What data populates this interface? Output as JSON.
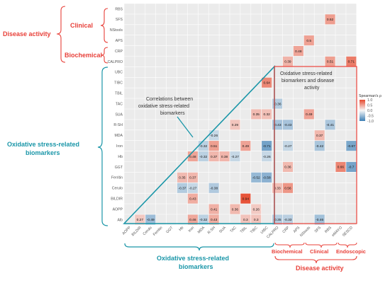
{
  "chart_data": {
    "type": "heatmap",
    "title": "",
    "legend": {
      "title": "Spearman's ρ",
      "ticks": [
        "1.0",
        "0.5",
        "0.0",
        "-0.5",
        "-1.0"
      ],
      "range": [
        -1,
        1
      ],
      "colors": {
        "neg": "#3d7fb5",
        "mid": "#f7f7f7",
        "pos": "#e64a2e"
      }
    },
    "rows": [
      "RBS",
      "SFS",
      "NStools",
      "APS",
      "CRP",
      "CALPRO",
      "UBC",
      "TIBC",
      "TBIL",
      "TAC",
      "SUA",
      "R-SH",
      "MDA",
      "Iron",
      "Hb",
      "GGT",
      "Ferritin",
      "Cerulo",
      "BILDIR",
      "AOPP",
      "Alb"
    ],
    "columns": [
      "AOPP",
      "BILDIR",
      "Cerulo",
      "Ferritin",
      "GGT",
      "Hb",
      "Iron",
      "MDA",
      "R-SH",
      "SUA",
      "TAC",
      "TBIL",
      "TIBC",
      "UIBC",
      "CALPRO",
      "CRP",
      "APS",
      "NStools",
      "SFS",
      "RBS",
      "eMAYO",
      "SESCD"
    ],
    "cells": [
      {
        "r": 1,
        "c": 19,
        "v": 0.52
      },
      {
        "r": 3,
        "c": 17,
        "v": 0.5
      },
      {
        "r": 4,
        "c": 16,
        "v": 0.48
      },
      {
        "r": 5,
        "c": 15,
        "v": 0.39
      },
      {
        "r": 5,
        "c": 19,
        "v": 0.51
      },
      {
        "r": 5,
        "c": 21,
        "v": 0.71
      },
      {
        "r": 7,
        "c": 13,
        "v": 0.64
      },
      {
        "r": 9,
        "c": 14,
        "v": -0.36
      },
      {
        "r": 10,
        "c": 12,
        "v": 0.35
      },
      {
        "r": 10,
        "c": 13,
        "v": 0.32
      },
      {
        "r": 10,
        "c": 17,
        "v": 0.49
      },
      {
        "r": 11,
        "c": 10,
        "v": 0.29
      },
      {
        "r": 11,
        "c": 14,
        "v": -0.43
      },
      {
        "r": 11,
        "c": 15,
        "v": -0.43
      },
      {
        "r": 11,
        "c": 19,
        "v": -0.41
      },
      {
        "r": 12,
        "c": 8,
        "v": -0.26
      },
      {
        "r": 12,
        "c": 18,
        "v": 0.37
      },
      {
        "r": 13,
        "c": 7,
        "v": -0.32
      },
      {
        "r": 13,
        "c": 8,
        "v": 0.51
      },
      {
        "r": 13,
        "c": 11,
        "v": 0.49
      },
      {
        "r": 13,
        "c": 13,
        "v": -0.71
      },
      {
        "r": 13,
        "c": 15,
        "v": -0.27
      },
      {
        "r": 13,
        "c": 18,
        "v": -0.42
      },
      {
        "r": 13,
        "c": 21,
        "v": -0.67
      },
      {
        "r": 14,
        "c": 6,
        "v": 0.48
      },
      {
        "r": 14,
        "c": 7,
        "v": -0.32
      },
      {
        "r": 14,
        "c": 8,
        "v": 0.37
      },
      {
        "r": 14,
        "c": 9,
        "v": 0.38
      },
      {
        "r": 14,
        "c": 10,
        "v": -0.27
      },
      {
        "r": 14,
        "c": 13,
        "v": -0.26
      },
      {
        "r": 15,
        "c": 15,
        "v": 0.36
      },
      {
        "r": 15,
        "c": 20,
        "v": 0.66
      },
      {
        "r": 15,
        "c": 21,
        "v": -0.7
      },
      {
        "r": 16,
        "c": 5,
        "v": 0.35
      },
      {
        "r": 16,
        "c": 6,
        "v": 0.37
      },
      {
        "r": 16,
        "c": 12,
        "v": -0.52
      },
      {
        "r": 16,
        "c": 13,
        "v": -0.58
      },
      {
        "r": 17,
        "c": 5,
        "v": -0.37
      },
      {
        "r": 17,
        "c": 6,
        "v": -0.27
      },
      {
        "r": 17,
        "c": 8,
        "v": -0.38
      },
      {
        "r": 17,
        "c": 14,
        "v": 0.33
      },
      {
        "r": 17,
        "c": 15,
        "v": 0.56
      },
      {
        "r": 18,
        "c": 6,
        "v": 0.43
      },
      {
        "r": 18,
        "c": 11,
        "v": 0.94
      },
      {
        "r": 19,
        "c": 8,
        "v": 0.41
      },
      {
        "r": 19,
        "c": 10,
        "v": 0.36
      },
      {
        "r": 19,
        "c": 12,
        "v": 0.26
      },
      {
        "r": 20,
        "c": 1,
        "v": 0.27
      },
      {
        "r": 20,
        "c": 2,
        "v": -0.49
      },
      {
        "r": 20,
        "c": 6,
        "v": 0.46
      },
      {
        "r": 20,
        "c": 7,
        "v": -0.32
      },
      {
        "r": 20,
        "c": 8,
        "v": 0.43
      },
      {
        "r": 20,
        "c": 11,
        "v": 0.3
      },
      {
        "r": 20,
        "c": 12,
        "v": 0.3
      },
      {
        "r": 20,
        "c": 14,
        "v": -0.35
      },
      {
        "r": 20,
        "c": 15,
        "v": -0.33
      },
      {
        "r": 20,
        "c": 18,
        "v": -0.46
      }
    ],
    "annotations": {
      "disease_activity_left": "Disease activity",
      "clinical": "Clinical",
      "biochemical": "Biochemical",
      "oxidative_left_line1": "Oxidative stress-related",
      "oxidative_left_line2": "biomarkers",
      "triangle_note_line1": "Correlations between",
      "triangle_note_line2": "oxidative stress-related",
      "triangle_note_line3": "biomarkers",
      "box_note_line1": "Oxidative stress-related",
      "box_note_line2": "biomarkers and disease",
      "box_note_line3": "activity",
      "bottom_oxidative_line1": "Oxidative stress-related",
      "bottom_oxidative_line2": "biomarkers",
      "bottom_biochemical": "Biochemical",
      "bottom_clinical": "Clinical",
      "bottom_endoscopic": "Endoscopic",
      "bottom_disease_activity": "Disease activity"
    }
  }
}
